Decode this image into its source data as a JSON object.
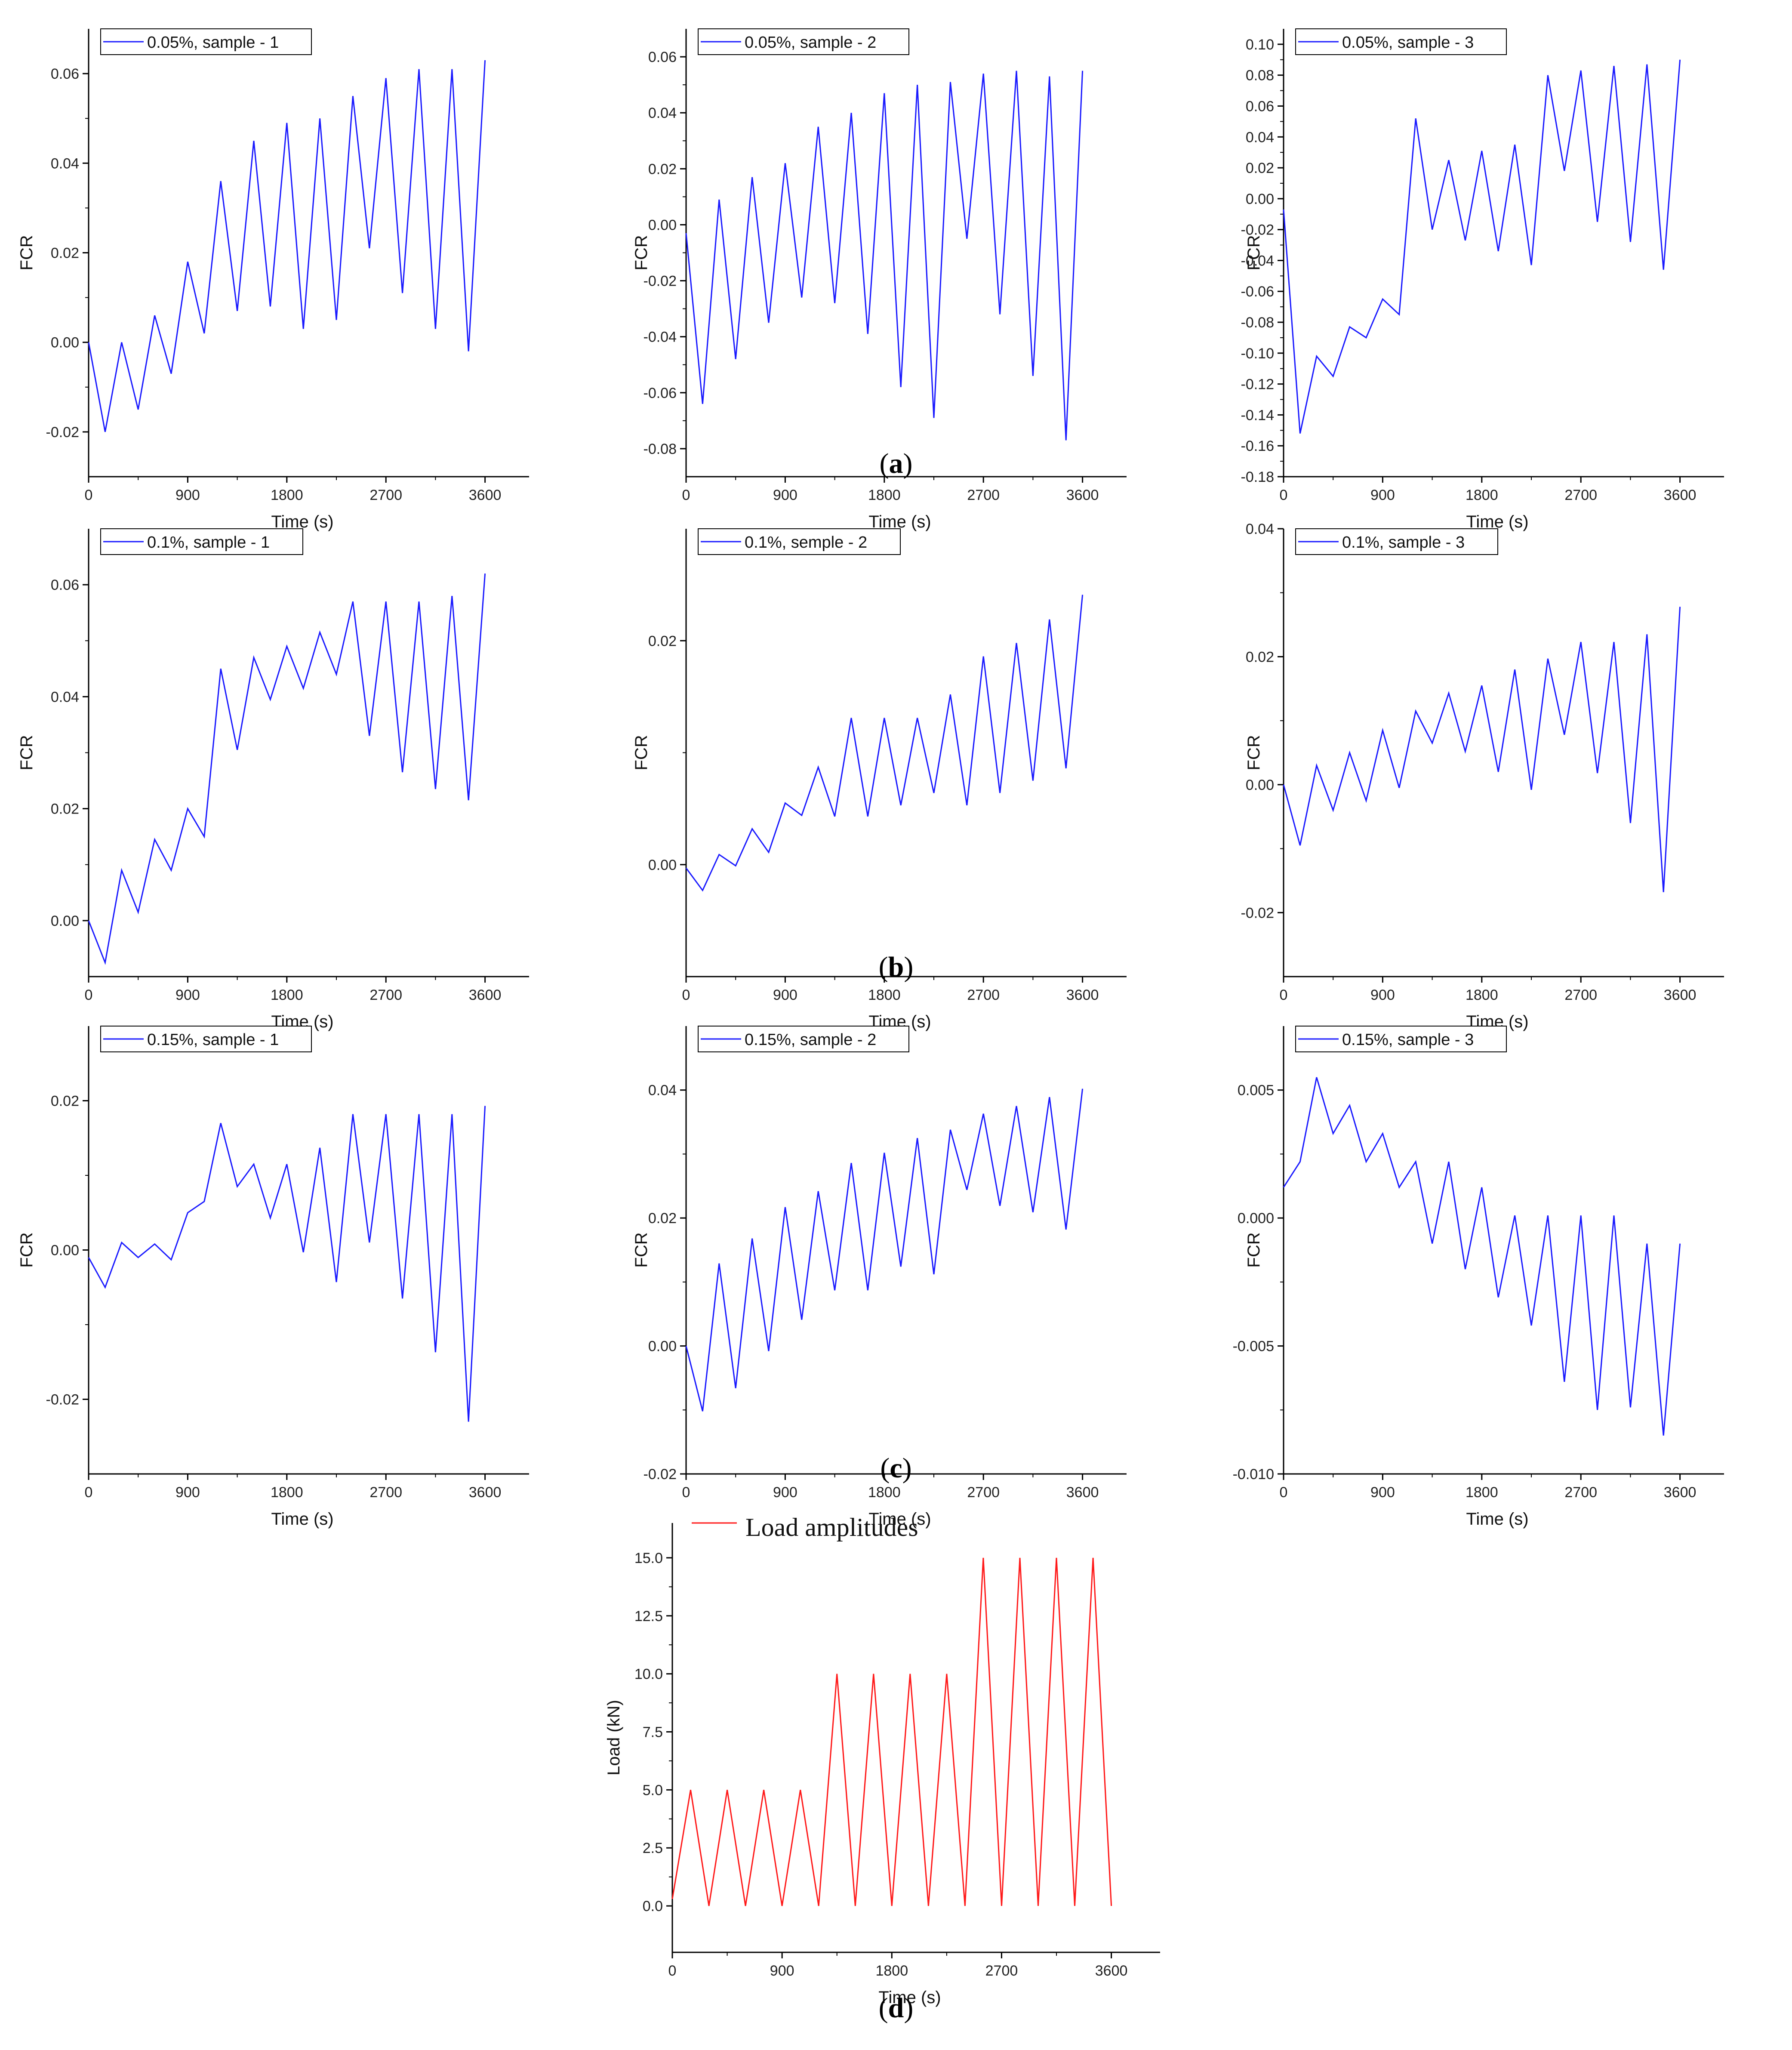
{
  "figure": {
    "captions": {
      "a": {
        "open": "(",
        "letter": "a",
        "close": ")"
      },
      "b": {
        "open": "(",
        "letter": "b",
        "close": ")"
      },
      "c": {
        "open": "(",
        "letter": "c",
        "close": ")"
      },
      "d": {
        "open": "(",
        "letter": "d",
        "close": ")"
      }
    }
  },
  "chart_data": [
    {
      "id": "a1",
      "group": "a",
      "type": "line",
      "legend": "0.05%, sample - 1",
      "color": "#1a1aff",
      "xlabel": "Time (s)",
      "ylabel": "FCR",
      "xlim": [
        0,
        4000
      ],
      "xticks": [
        0,
        900,
        1800,
        2700,
        3600
      ],
      "ylim": [
        -0.03,
        0.07
      ],
      "yticks": [
        -0.02,
        0.0,
        0.02,
        0.04,
        0.06
      ],
      "ytick_decimals": 2,
      "x": [
        0,
        150,
        300,
        450,
        600,
        750,
        900,
        1050,
        1200,
        1350,
        1500,
        1650,
        1800,
        1950,
        2100,
        2250,
        2400,
        2550,
        2700,
        2850,
        3000,
        3150,
        3300,
        3450,
        3600
      ],
      "y": [
        0.0,
        -0.02,
        0.0,
        -0.015,
        0.006,
        -0.007,
        0.018,
        0.002,
        0.036,
        0.007,
        0.045,
        0.008,
        0.049,
        0.003,
        0.05,
        0.005,
        0.055,
        0.021,
        0.059,
        0.011,
        0.061,
        0.003,
        0.061,
        -0.002,
        0.063
      ]
    },
    {
      "id": "a2",
      "group": "a",
      "type": "line",
      "legend": "0.05%, sample - 2",
      "color": "#1a1aff",
      "xlabel": "Time (s)",
      "ylabel": "FCR",
      "xlim": [
        0,
        4000
      ],
      "xticks": [
        0,
        900,
        1800,
        2700,
        3600
      ],
      "ylim": [
        -0.09,
        0.07
      ],
      "yticks": [
        -0.08,
        -0.06,
        -0.04,
        -0.02,
        0.0,
        0.02,
        0.04,
        0.06
      ],
      "ytick_decimals": 2,
      "x": [
        0,
        150,
        300,
        450,
        600,
        750,
        900,
        1050,
        1200,
        1350,
        1500,
        1650,
        1800,
        1950,
        2100,
        2250,
        2400,
        2550,
        2700,
        2850,
        3000,
        3150,
        3300,
        3450,
        3600
      ],
      "y": [
        -0.003,
        -0.064,
        0.009,
        -0.048,
        0.017,
        -0.035,
        0.022,
        -0.026,
        0.035,
        -0.028,
        0.04,
        -0.039,
        0.047,
        -0.058,
        0.05,
        -0.069,
        0.051,
        -0.005,
        0.054,
        -0.032,
        0.055,
        -0.054,
        0.053,
        -0.077,
        0.055
      ]
    },
    {
      "id": "a3",
      "group": "a",
      "type": "line",
      "legend": "0.05%, sample - 3",
      "color": "#1a1aff",
      "xlabel": "Time (s)",
      "ylabel": "FCR",
      "xlim": [
        0,
        4000
      ],
      "xticks": [
        0,
        900,
        1800,
        2700,
        3600
      ],
      "ylim": [
        -0.18,
        0.11
      ],
      "yticks": [
        -0.18,
        -0.16,
        -0.14,
        -0.12,
        -0.1,
        -0.08,
        -0.06,
        -0.04,
        -0.02,
        0.0,
        0.02,
        0.04,
        0.06,
        0.08,
        0.1
      ],
      "ytick_decimals": 2,
      "x": [
        0,
        150,
        300,
        450,
        600,
        750,
        900,
        1050,
        1200,
        1350,
        1500,
        1650,
        1800,
        1950,
        2100,
        2250,
        2400,
        2550,
        2700,
        2850,
        3000,
        3150,
        3300,
        3450,
        3600
      ],
      "y": [
        -0.007,
        -0.152,
        -0.102,
        -0.115,
        -0.083,
        -0.09,
        -0.065,
        -0.075,
        0.052,
        -0.02,
        0.025,
        -0.027,
        0.031,
        -0.034,
        0.035,
        -0.043,
        0.08,
        0.018,
        0.083,
        -0.015,
        0.086,
        -0.028,
        0.087,
        -0.046,
        0.09
      ]
    },
    {
      "id": "b1",
      "group": "b",
      "type": "line",
      "legend": "0.1%, sample - 1",
      "color": "#1a1aff",
      "xlabel": "Time (s)",
      "ylabel": "FCR",
      "xlim": [
        0,
        4000
      ],
      "xticks": [
        0,
        900,
        1800,
        2700,
        3600
      ],
      "ylim": [
        -0.01,
        0.07
      ],
      "yticks": [
        0.0,
        0.02,
        0.04,
        0.06
      ],
      "ytick_decimals": 2,
      "x": [
        0,
        150,
        300,
        450,
        600,
        750,
        900,
        1050,
        1200,
        1350,
        1500,
        1650,
        1800,
        1950,
        2100,
        2250,
        2400,
        2550,
        2700,
        2850,
        3000,
        3150,
        3300,
        3450,
        3600
      ],
      "y": [
        0.0,
        -0.0075,
        0.009,
        0.0015,
        0.0145,
        0.009,
        0.02,
        0.015,
        0.045,
        0.0305,
        0.047,
        0.0395,
        0.049,
        0.0415,
        0.0515,
        0.044,
        0.057,
        0.033,
        0.057,
        0.0265,
        0.057,
        0.0235,
        0.058,
        0.0215,
        0.062
      ]
    },
    {
      "id": "b2",
      "group": "b",
      "type": "line",
      "legend": "0.1%, semple - 2",
      "color": "#1a1aff",
      "xlabel": "Time (s)",
      "ylabel": "FCR",
      "xlim": [
        0,
        4000
      ],
      "xticks": [
        0,
        900,
        1800,
        2700,
        3600
      ],
      "ylim": [
        -0.01,
        0.03
      ],
      "yticks": [
        0.0,
        0.02
      ],
      "ytick_decimals": 2,
      "x": [
        0,
        150,
        300,
        450,
        600,
        750,
        900,
        1050,
        1200,
        1350,
        1500,
        1650,
        1800,
        1950,
        2100,
        2250,
        2400,
        2550,
        2700,
        2850,
        3000,
        3150,
        3300,
        3450,
        3600
      ],
      "y": [
        -0.0003,
        -0.0023,
        0.0009,
        -0.0001,
        0.0032,
        0.0011,
        0.0055,
        0.0044,
        0.0087,
        0.0043,
        0.0131,
        0.0043,
        0.0131,
        0.0053,
        0.0131,
        0.0064,
        0.0152,
        0.0053,
        0.0186,
        0.0064,
        0.0198,
        0.0075,
        0.0219,
        0.0086,
        0.0241
      ]
    },
    {
      "id": "b3",
      "group": "b",
      "type": "line",
      "legend": "0.1%, sample - 3",
      "color": "#1a1aff",
      "xlabel": "Time (s)",
      "ylabel": "FCR",
      "xlim": [
        0,
        4000
      ],
      "xticks": [
        0,
        900,
        1800,
        2700,
        3600
      ],
      "ylim": [
        -0.03,
        0.04
      ],
      "yticks": [
        -0.02,
        0.0,
        0.02,
        0.04
      ],
      "ytick_decimals": 2,
      "x": [
        0,
        150,
        300,
        450,
        600,
        750,
        900,
        1050,
        1200,
        1350,
        1500,
        1650,
        1800,
        1950,
        2100,
        2250,
        2400,
        2550,
        2700,
        2850,
        3000,
        3150,
        3300,
        3450,
        3600
      ],
      "y": [
        0.0,
        -0.0095,
        0.003,
        -0.004,
        0.005,
        -0.0025,
        0.0085,
        -0.0005,
        0.0115,
        0.0065,
        0.0143,
        0.0052,
        0.0155,
        0.002,
        0.018,
        -0.0008,
        0.0197,
        0.0078,
        0.0223,
        0.0018,
        0.0223,
        -0.006,
        0.0235,
        -0.0168,
        0.0278
      ]
    },
    {
      "id": "c1",
      "group": "c",
      "type": "line",
      "legend": "0.15%, sample - 1",
      "color": "#1a1aff",
      "xlabel": "Time (s)",
      "ylabel": "FCR",
      "xlim": [
        0,
        4000
      ],
      "xticks": [
        0,
        900,
        1800,
        2700,
        3600
      ],
      "ylim": [
        -0.03,
        0.03
      ],
      "yticks": [
        -0.02,
        0.0,
        0.02
      ],
      "ytick_decimals": 2,
      "x": [
        0,
        150,
        300,
        450,
        600,
        750,
        900,
        1050,
        1200,
        1350,
        1500,
        1650,
        1800,
        1950,
        2100,
        2250,
        2400,
        2550,
        2700,
        2850,
        3000,
        3150,
        3300,
        3450,
        3600
      ],
      "y": [
        -0.001,
        -0.005,
        0.001,
        -0.001,
        0.0008,
        -0.0013,
        0.005,
        0.0065,
        0.017,
        0.0085,
        0.0115,
        0.0043,
        0.0115,
        -0.0003,
        0.0137,
        -0.0043,
        0.0182,
        0.001,
        0.0182,
        -0.0065,
        0.0182,
        -0.0137,
        0.0182,
        -0.023,
        0.0193
      ]
    },
    {
      "id": "c2",
      "group": "c",
      "type": "line",
      "legend": "0.15%, sample - 2",
      "color": "#1a1aff",
      "xlabel": "Time (s)",
      "ylabel": "FCR",
      "xlim": [
        0,
        4000
      ],
      "xticks": [
        0,
        900,
        1800,
        2700,
        3600
      ],
      "ylim": [
        -0.02,
        0.05
      ],
      "yticks": [
        -0.02,
        0.0,
        0.02,
        0.04
      ],
      "ytick_decimals": 2,
      "x": [
        0,
        150,
        300,
        450,
        600,
        750,
        900,
        1050,
        1200,
        1350,
        1500,
        1650,
        1800,
        1950,
        2100,
        2250,
        2400,
        2550,
        2700,
        2850,
        3000,
        3150,
        3300,
        3450,
        3600
      ],
      "y": [
        0.0,
        -0.0102,
        0.0129,
        -0.0066,
        0.0168,
        -0.0008,
        0.0217,
        0.0041,
        0.0242,
        0.0087,
        0.0286,
        0.0087,
        0.0302,
        0.0124,
        0.0325,
        0.0112,
        0.0338,
        0.0244,
        0.0363,
        0.0219,
        0.0375,
        0.0209,
        0.0389,
        0.0182,
        0.0402
      ]
    },
    {
      "id": "c3",
      "group": "c",
      "type": "line",
      "legend": "0.15%, sample - 3",
      "color": "#1a1aff",
      "xlabel": "Time (s)",
      "ylabel": "FCR",
      "xlim": [
        0,
        4000
      ],
      "xticks": [
        0,
        900,
        1800,
        2700,
        3600
      ],
      "ylim": [
        -0.01,
        0.0075
      ],
      "yticks": [
        -0.01,
        -0.005,
        0.0,
        0.005
      ],
      "ytick_decimals": 3,
      "x": [
        0,
        150,
        300,
        450,
        600,
        750,
        900,
        1050,
        1200,
        1350,
        1500,
        1650,
        1800,
        1950,
        2100,
        2250,
        2400,
        2550,
        2700,
        2850,
        3000,
        3150,
        3300,
        3450,
        3600
      ],
      "y": [
        0.0012,
        0.0022,
        0.0055,
        0.0033,
        0.0044,
        0.0022,
        0.0033,
        0.0012,
        0.0022,
        -0.001,
        0.0022,
        -0.002,
        0.0012,
        -0.0031,
        0.0001,
        -0.0042,
        0.0001,
        -0.0064,
        0.0001,
        -0.0075,
        0.0001,
        -0.0074,
        -0.001,
        -0.0085,
        -0.001
      ]
    },
    {
      "id": "d",
      "group": "d",
      "type": "line",
      "legend": "Load amplitudes",
      "color": "#ff1a1a",
      "xlabel": "Time (s)",
      "ylabel": "Load (kN)",
      "xlim": [
        0,
        4000
      ],
      "xticks": [
        0,
        900,
        1800,
        2700,
        3600
      ],
      "ylim": [
        -2.0,
        16.5
      ],
      "yticks": [
        0.0,
        2.5,
        5.0,
        7.5,
        10.0,
        12.5,
        15.0
      ],
      "ytick_decimals": 1,
      "x": [
        0,
        150,
        300,
        450,
        600,
        750,
        900,
        1050,
        1200,
        1350,
        1500,
        1650,
        1800,
        1950,
        2100,
        2250,
        2400,
        2550,
        2700,
        2850,
        3000,
        3150,
        3300,
        3450,
        3600
      ],
      "y": [
        0.3,
        5.0,
        0.0,
        5.0,
        0.0,
        5.0,
        0.0,
        5.0,
        0.0,
        10.0,
        0.0,
        10.0,
        0.0,
        10.0,
        0.0,
        10.0,
        0.0,
        15.0,
        0.0,
        15.0,
        0.0,
        15.0,
        0.0,
        15.0,
        0.0
      ]
    }
  ]
}
